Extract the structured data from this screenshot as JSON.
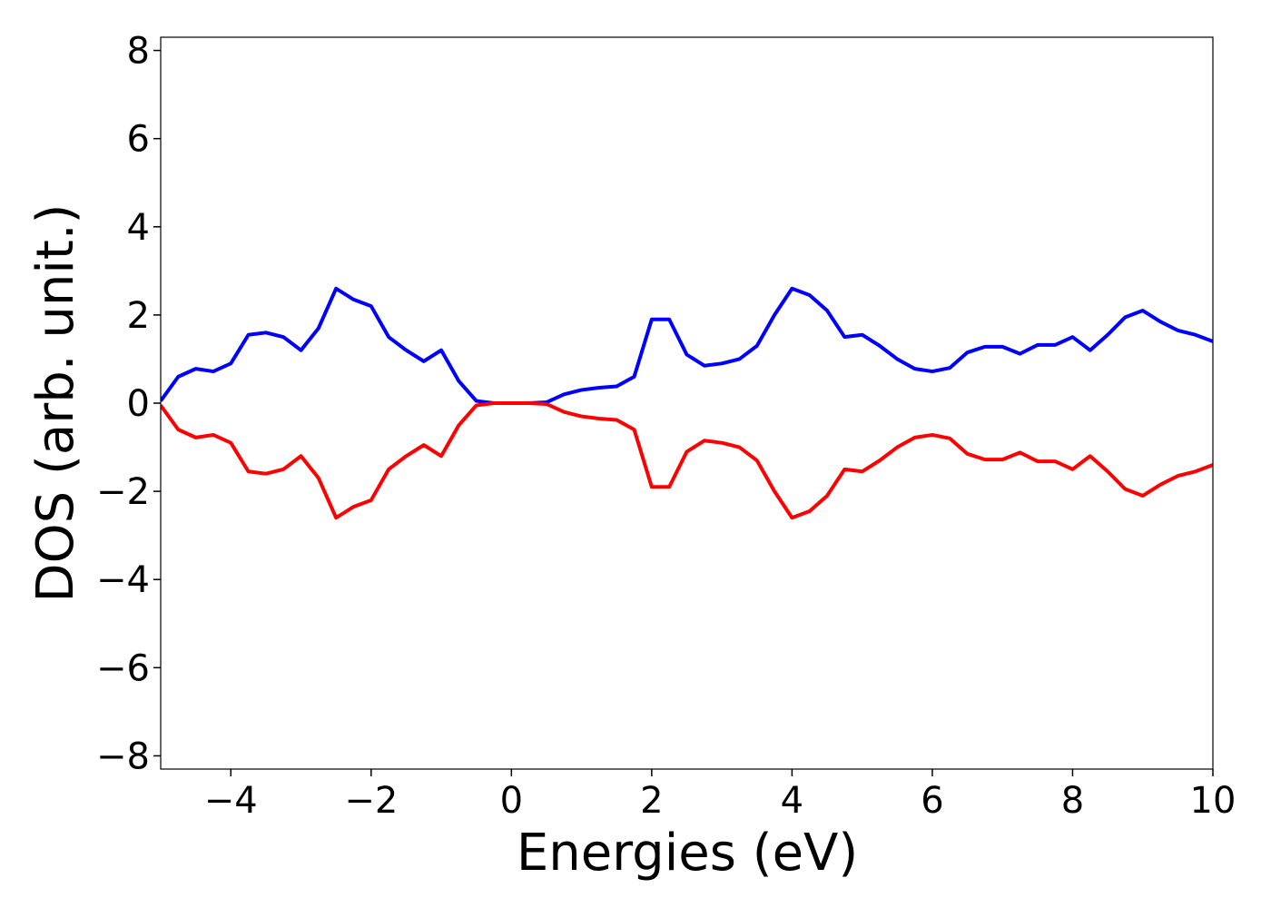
{
  "chart_data": {
    "type": "line",
    "xlabel": "Energies (eV)",
    "ylabel": "DOS (arb. unit.)",
    "x": [
      -5,
      -4.75,
      -4.5,
      -4.25,
      -4,
      -3.75,
      -3.5,
      -3.25,
      -3,
      -2.75,
      -2.5,
      -2.25,
      -2,
      -1.75,
      -1.5,
      -1.25,
      -1,
      -0.75,
      -0.5,
      -0.25,
      0,
      0.25,
      0.5,
      0.75,
      1,
      1.25,
      1.5,
      1.75,
      2,
      2.25,
      2.5,
      2.75,
      3,
      3.25,
      3.5,
      3.75,
      4,
      4.25,
      4.5,
      4.75,
      5,
      5.25,
      5.5,
      5.75,
      6,
      6.25,
      6.5,
      6.75,
      7,
      7.25,
      7.5,
      7.75,
      8,
      8.25,
      8.5,
      8.75,
      9,
      9.25,
      9.5,
      9.75,
      10
    ],
    "series": [
      {
        "color": "#0000ff",
        "values": [
          0.05,
          0.6,
          0.78,
          0.72,
          0.9,
          1.55,
          1.6,
          1.5,
          1.2,
          1.7,
          2.6,
          2.35,
          2.2,
          1.5,
          1.2,
          0.95,
          1.2,
          0.5,
          0.05,
          0,
          0,
          0,
          0.02,
          0.2,
          0.3,
          0.35,
          0.38,
          0.6,
          1.9,
          1.9,
          1.1,
          0.85,
          0.9,
          1.0,
          1.3,
          2.0,
          2.6,
          2.45,
          2.1,
          1.5,
          1.55,
          1.3,
          1.0,
          0.78,
          0.72,
          0.8,
          1.15,
          1.28,
          1.28,
          1.12,
          1.32,
          1.32,
          1.5,
          1.2,
          1.55,
          1.95,
          2.1,
          1.85,
          1.65,
          1.55,
          1.4
        ]
      },
      {
        "color": "#ff0000",
        "values": [
          -0.05,
          -0.6,
          -0.78,
          -0.72,
          -0.9,
          -1.55,
          -1.6,
          -1.5,
          -1.2,
          -1.7,
          -2.6,
          -2.35,
          -2.2,
          -1.5,
          -1.2,
          -0.95,
          -1.2,
          -0.5,
          -0.05,
          0,
          0,
          0,
          -0.02,
          -0.2,
          -0.3,
          -0.35,
          -0.38,
          -0.6,
          -1.9,
          -1.9,
          -1.1,
          -0.85,
          -0.9,
          -1.0,
          -1.3,
          -2.0,
          -2.6,
          -2.45,
          -2.1,
          -1.5,
          -1.55,
          -1.3,
          -1.0,
          -0.78,
          -0.72,
          -0.8,
          -1.15,
          -1.28,
          -1.28,
          -1.12,
          -1.32,
          -1.32,
          -1.5,
          -1.2,
          -1.55,
          -1.95,
          -2.1,
          -1.85,
          -1.65,
          -1.55,
          -1.4
        ]
      }
    ],
    "xlim": [
      -5,
      10
    ],
    "xticks": [
      {
        "value": -4,
        "label": "−4"
      },
      {
        "value": -2,
        "label": "−2"
      },
      0,
      2,
      4,
      6,
      8,
      10
    ],
    "ylim": [
      -8.3,
      8.3
    ],
    "yticks": [
      {
        "value": -8,
        "label": "−8"
      },
      {
        "value": -6,
        "label": "−6"
      },
      {
        "value": -4,
        "label": "−4"
      },
      {
        "value": -2,
        "label": "−2"
      },
      0,
      2,
      4,
      6,
      8
    ]
  }
}
